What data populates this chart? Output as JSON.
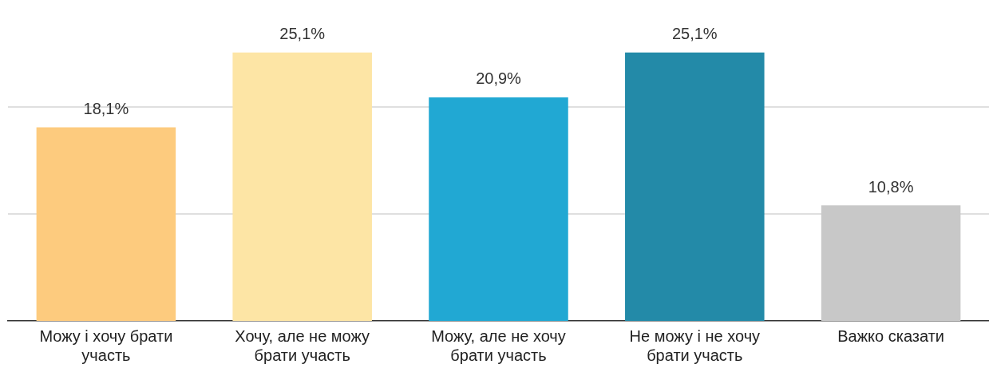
{
  "chart_data": {
    "type": "bar",
    "categories": [
      "Можу і хочу брати участь",
      "Хочу, але не можу брати участь",
      "Можу, але не хочу брати участь",
      "Не можу і не хочу брати участь",
      "Важко сказати"
    ],
    "values": [
      18.1,
      25.1,
      20.9,
      25.1,
      10.8
    ],
    "colors": [
      "#fdcb7e",
      "#fde5a5",
      "#21a8d3",
      "#238aa8",
      "#c8c8c8"
    ],
    "value_labels": [
      "18,1%",
      "25,1%",
      "20,9%",
      "25,1%",
      "10,8%"
    ],
    "ref_lines": [
      {
        "axis": "y",
        "value": 10,
        "color": "#d4d4d4"
      },
      {
        "axis": "y",
        "value": 20,
        "color": "#d4d4d4"
      }
    ],
    "tick_labels": "x",
    "legend": false
  }
}
